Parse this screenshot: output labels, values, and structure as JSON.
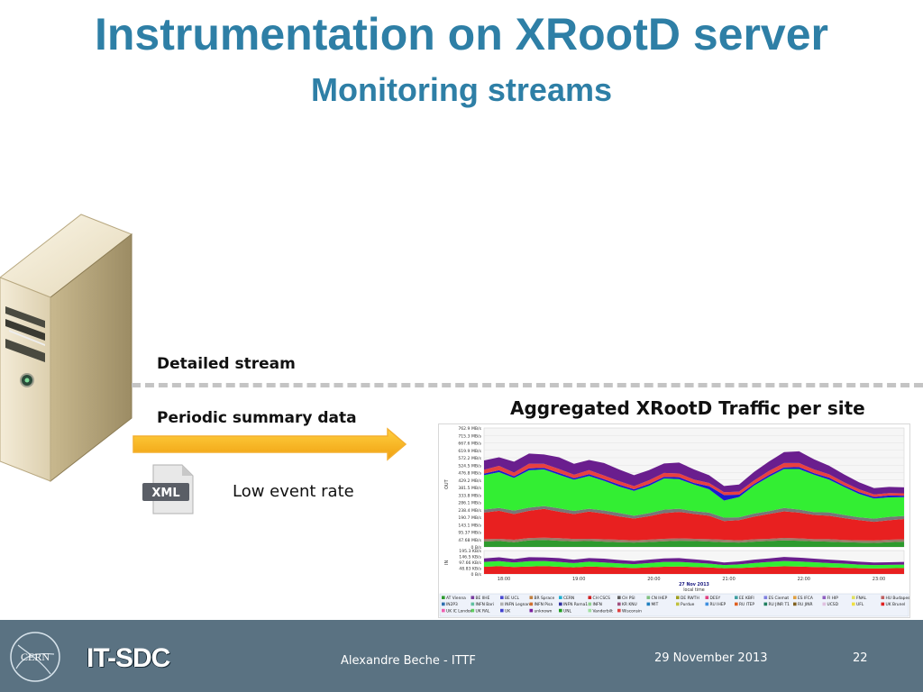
{
  "slide": {
    "title": "Instrumentation on XRootD server",
    "subtitle": "Monitoring streams",
    "detailed_label": "Detailed stream",
    "periodic_label": "Periodic summary data",
    "low_event_label": "Low event rate",
    "xml_icon_text": "XML",
    "chart_heading": "Aggregated XRootD Traffic per site"
  },
  "chart_data": {
    "type": "area",
    "out_axis_label": "OUT",
    "in_axis_label": "IN",
    "out_ticks": [
      "762.9 MB/s",
      "715.3 MB/s",
      "667.6 MB/s",
      "619.9 MB/s",
      "572.2 MB/s",
      "524.5 MB/s",
      "476.8 MB/s",
      "429.2 MB/s",
      "381.5 MB/s",
      "333.8 MB/s",
      "286.1 MB/s",
      "238.4 MB/s",
      "190.7 MB/s",
      "143.1 MB/s",
      "95.37 MB/s",
      "47.68 MB/s",
      "0 B/s"
    ],
    "in_ticks": [
      "195.3 KB/s",
      "146.5 KB/s",
      "97.66 KB/s",
      "48.83 KB/s",
      "0 B/s"
    ],
    "x_ticks": [
      "18:00",
      "19:00",
      "20:00",
      "21:00",
      "22:00",
      "23:00"
    ],
    "date_label": "27 Nov 2013",
    "time_label": "local time",
    "series_out": [
      {
        "color": "#2e9a2e",
        "values": [
          35,
          38,
          30,
          42,
          45,
          40,
          36,
          38,
          34,
          30,
          28,
          32,
          36,
          40,
          38,
          35,
          30,
          28,
          34,
          38,
          42,
          40,
          36,
          34,
          30,
          28,
          26,
          30,
          34
        ]
      },
      {
        "color": "#9a7b6a",
        "values": [
          15,
          14,
          16,
          15,
          14,
          16,
          15,
          14,
          15,
          16,
          14,
          15,
          16,
          15,
          14,
          15,
          16,
          14,
          15,
          14,
          16,
          15,
          14,
          16,
          15,
          14,
          15,
          16,
          15
        ]
      },
      {
        "color": "#e82020",
        "values": [
          170,
          180,
          165,
          175,
          185,
          170,
          160,
          175,
          165,
          150,
          140,
          150,
          165,
          170,
          160,
          150,
          120,
          130,
          145,
          160,
          170,
          165,
          155,
          150,
          140,
          130,
          120,
          125,
          130
        ]
      },
      {
        "color": "#777777",
        "values": [
          20,
          18,
          22,
          20,
          18,
          22,
          20,
          18,
          20,
          22,
          18,
          20,
          22,
          20,
          18,
          20,
          22,
          18,
          20,
          18,
          22,
          20,
          18,
          22,
          20,
          18,
          20,
          22,
          20
        ]
      },
      {
        "color": "#33ee33",
        "values": [
          220,
          230,
          210,
          240,
          235,
          215,
          200,
          210,
          190,
          170,
          160,
          175,
          200,
          190,
          170,
          150,
          110,
          130,
          180,
          220,
          250,
          260,
          240,
          210,
          180,
          150,
          130,
          125,
          120
        ]
      },
      {
        "color": "#1a1ad0",
        "values": [
          10,
          12,
          10,
          12,
          10,
          12,
          10,
          12,
          10,
          12,
          10,
          12,
          10,
          12,
          10,
          20,
          35,
          15,
          10,
          12,
          10,
          12,
          10,
          12,
          10,
          12,
          10,
          12,
          10
        ]
      },
      {
        "color": "#e84040",
        "values": [
          25,
          28,
          24,
          30,
          26,
          25,
          22,
          26,
          24,
          22,
          20,
          24,
          26,
          24,
          22,
          20,
          18,
          20,
          22,
          26,
          28,
          26,
          24,
          22,
          20,
          18,
          16,
          15,
          15
        ]
      },
      {
        "color": "#6a1e8e",
        "values": [
          60,
          55,
          70,
          65,
          60,
          75,
          70,
          65,
          80,
          75,
          70,
          65,
          60,
          70,
          65,
          50,
          40,
          45,
          55,
          60,
          70,
          75,
          65,
          55,
          50,
          45,
          40,
          40,
          38
        ]
      }
    ],
    "series_in": [
      {
        "color": "#e82020",
        "values": [
          60,
          65,
          58,
          62,
          66,
          60,
          55,
          62,
          58,
          54,
          50,
          55,
          60,
          62,
          58,
          54,
          48,
          50,
          55,
          60,
          64,
          62,
          58,
          55,
          52,
          48,
          46,
          48,
          50
        ]
      },
      {
        "color": "#33ee33",
        "values": [
          40,
          42,
          38,
          44,
          42,
          40,
          36,
          40,
          38,
          34,
          32,
          36,
          40,
          38,
          36,
          32,
          26,
          30,
          36,
          40,
          44,
          42,
          40,
          36,
          34,
          30,
          28,
          28,
          28
        ]
      },
      {
        "color": "#6a1e8e",
        "values": [
          30,
          32,
          28,
          34,
          30,
          32,
          28,
          30,
          32,
          28,
          26,
          28,
          30,
          32,
          28,
          26,
          22,
          24,
          28,
          30,
          34,
          32,
          30,
          28,
          26,
          24,
          22,
          22,
          22
        ]
      }
    ],
    "legend": [
      {
        "label": "AT Vienna",
        "color": "#2e9a2e"
      },
      {
        "label": "BE IIHE",
        "color": "#7a3e9e"
      },
      {
        "label": "BE UCL",
        "color": "#4a4ad0"
      },
      {
        "label": "BR Sprace",
        "color": "#c08040"
      },
      {
        "label": "CERN",
        "color": "#20b0d0"
      },
      {
        "label": "CH CSCS",
        "color": "#d02020"
      },
      {
        "label": "CH PSI",
        "color": "#606060"
      },
      {
        "label": "CN IHEP",
        "color": "#80c080"
      },
      {
        "label": "DE RWTH",
        "color": "#a0a020"
      },
      {
        "label": "DESY",
        "color": "#e04080"
      },
      {
        "label": "EE KBFI",
        "color": "#40a0a0"
      },
      {
        "label": "ES Ciemat",
        "color": "#8080e0"
      },
      {
        "label": "ES IFCA",
        "color": "#e0a040"
      },
      {
        "label": "FI HIP",
        "color": "#9060c0"
      },
      {
        "label": "FNAL",
        "color": "#e0e060"
      },
      {
        "label": "HU Budapest",
        "color": "#c06060"
      },
      {
        "label": "IN2P3",
        "color": "#3070b0"
      },
      {
        "label": "INFN Bari",
        "color": "#60c0a0"
      },
      {
        "label": "INFN Legnaro",
        "color": "#b0b0b0"
      },
      {
        "label": "INFN Pisa",
        "color": "#d07030"
      },
      {
        "label": "INFN Roma1",
        "color": "#3030a0"
      },
      {
        "label": "INFN",
        "color": "#90d090"
      },
      {
        "label": "KR KNU",
        "color": "#a05080"
      },
      {
        "label": "MIT",
        "color": "#2080c0"
      },
      {
        "label": "Purdue",
        "color": "#c0c040"
      },
      {
        "label": "RU IHEP",
        "color": "#4090e0"
      },
      {
        "label": "RU ITEP",
        "color": "#e06020"
      },
      {
        "label": "RU JINR T1",
        "color": "#208060"
      },
      {
        "label": "RU JINR",
        "color": "#806020"
      },
      {
        "label": "UCSD",
        "color": "#e0c0e0"
      },
      {
        "label": "UFL",
        "color": "#f0e040"
      },
      {
        "label": "UK Brunel",
        "color": "#e02020"
      },
      {
        "label": "UK IC London",
        "color": "#f060b0"
      },
      {
        "label": "UK RAL",
        "color": "#60d060"
      },
      {
        "label": "UK",
        "color": "#4040d0"
      },
      {
        "label": "unknown",
        "color": "#7a1e9e"
      },
      {
        "label": "UNL",
        "color": "#20a020"
      },
      {
        "label": "Vanderbilt",
        "color": "#a0e0a0"
      },
      {
        "label": "Wisconsin",
        "color": "#e04040"
      }
    ]
  },
  "footer": {
    "logo_text": "CERN",
    "group": "IT-SDC",
    "author": "Alexandre Beche - ITTF",
    "date": "29 November 2013",
    "page": "22"
  }
}
